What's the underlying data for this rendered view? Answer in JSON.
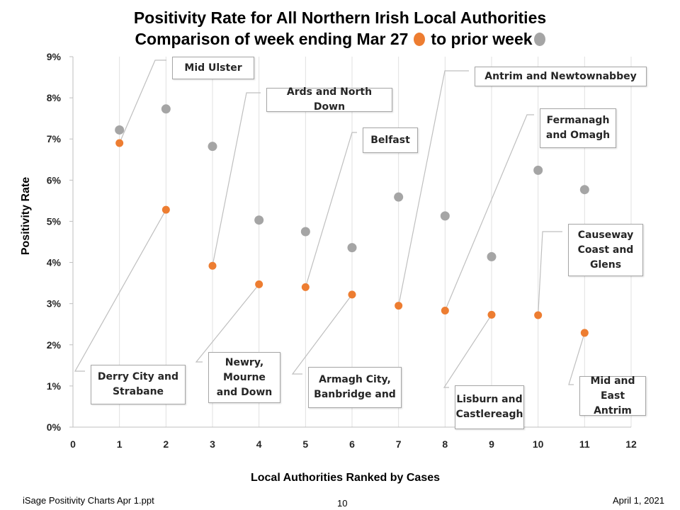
{
  "chart_data": {
    "type": "scatter",
    "title_line1": "Positivity Rate for All Northern Irish Local Authorities",
    "title_line2": "Comparison of week ending Mar 27",
    "title_line2_suffix": "to prior week",
    "xlabel": "Local Authorities Ranked by Cases",
    "ylabel": "Positivity Rate",
    "xlim": [
      0,
      12
    ],
    "ylim": [
      0,
      0.09
    ],
    "x_ticks": [
      "0",
      "1",
      "2",
      "3",
      "4",
      "5",
      "6",
      "7",
      "8",
      "9",
      "10",
      "11",
      "12"
    ],
    "y_ticks": [
      "0%",
      "1%",
      "2%",
      "3%",
      "4%",
      "5%",
      "6%",
      "7%",
      "8%",
      "9%"
    ],
    "grid": "vertical",
    "series": [
      {
        "color": "#ed7d31",
        "points": [
          {
            "x": 1,
            "y": 0.069
          },
          {
            "x": 2,
            "y": 0.0528
          },
          {
            "x": 3,
            "y": 0.0392
          },
          {
            "x": 4,
            "y": 0.0347
          },
          {
            "x": 5,
            "y": 0.034
          },
          {
            "x": 6,
            "y": 0.0322
          },
          {
            "x": 7,
            "y": 0.0295
          },
          {
            "x": 8,
            "y": 0.0283
          },
          {
            "x": 9,
            "y": 0.0273
          },
          {
            "x": 10,
            "y": 0.0272
          },
          {
            "x": 11,
            "y": 0.0229
          }
        ]
      },
      {
        "color": "#a5a5a5",
        "points": [
          {
            "x": 1,
            "y": 0.0722
          },
          {
            "x": 2,
            "y": 0.0773
          },
          {
            "x": 3,
            "y": 0.0682
          },
          {
            "x": 4,
            "y": 0.0503
          },
          {
            "x": 5,
            "y": 0.0475
          },
          {
            "x": 6,
            "y": 0.0436
          },
          {
            "x": 7,
            "y": 0.0559
          },
          {
            "x": 8,
            "y": 0.0513
          },
          {
            "x": 9,
            "y": 0.0414
          },
          {
            "x": 10,
            "y": 0.0624
          },
          {
            "x": 11,
            "y": 0.0577
          }
        ]
      }
    ],
    "annotations": [
      {
        "x": 1,
        "text": "Mid Ulster"
      },
      {
        "x": 2,
        "text": "Derry City and Strabane"
      },
      {
        "x": 3,
        "text": "Ards and North Down"
      },
      {
        "x": 4,
        "text": "Newry, Mourne and Down"
      },
      {
        "x": 5,
        "text": "Belfast"
      },
      {
        "x": 6,
        "text": "Armagh City, Banbridge and"
      },
      {
        "x": 7,
        "text": "Antrim and Newtownabbey"
      },
      {
        "x": 8,
        "text": "Fermanagh and Omagh"
      },
      {
        "x": 9,
        "text": "Lisburn and Castlereagh"
      },
      {
        "x": 10,
        "text": "Causeway Coast and Glens"
      },
      {
        "x": 11,
        "text": "Mid and East Antrim"
      }
    ]
  },
  "footer": {
    "left": "iSage  Positivity Charts Apr 1.ppt",
    "center": "10",
    "right": "April 1, 2021"
  }
}
